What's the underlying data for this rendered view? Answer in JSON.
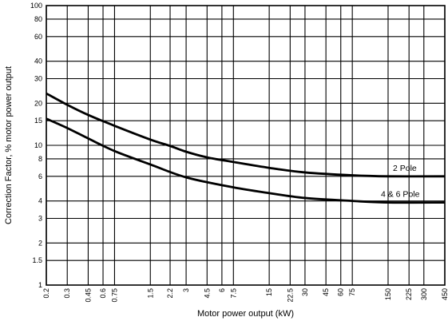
{
  "chart_data": {
    "type": "line",
    "title": "",
    "xlabel": "Motor power output (kW)",
    "ylabel": "Correction Factor, % motor power output",
    "x_scale": "log",
    "y_scale": "log",
    "xlim": [
      0.2,
      450
    ],
    "ylim": [
      1,
      100
    ],
    "grid": true,
    "legend": "inline labels at right",
    "x_ticks": [
      0.2,
      0.3,
      0.45,
      0.6,
      0.75,
      1.5,
      2.2,
      3,
      4.5,
      6,
      7.5,
      15,
      22.5,
      30,
      45,
      60,
      75,
      150,
      225,
      300,
      450
    ],
    "x_tick_labels": [
      "0.2",
      "0.3",
      "0.45",
      "0.6",
      "0.75",
      "1.5",
      "2.2",
      "3",
      "4.5",
      "6",
      "7.5",
      "15",
      "22.5",
      "30",
      "45",
      "60",
      "75",
      "150",
      "225",
      "300",
      "450"
    ],
    "y_ticks": [
      1,
      1.5,
      2,
      3,
      4,
      6,
      8,
      10,
      15,
      20,
      30,
      40,
      60,
      80,
      100
    ],
    "y_tick_labels": [
      "1",
      "1.5",
      "2",
      "3",
      "4",
      "6",
      "8",
      "10",
      "15",
      "20",
      "30",
      "40",
      "60",
      "80",
      "100"
    ],
    "series": [
      {
        "name": "2 Pole",
        "x": [
          0.2,
          0.3,
          0.45,
          0.75,
          1.5,
          2.2,
          3,
          4.5,
          7.5,
          15,
          30,
          75,
          150,
          450
        ],
        "values": [
          23.5,
          19.5,
          16.5,
          13.8,
          11.0,
          9.9,
          9.0,
          8.2,
          7.6,
          6.9,
          6.4,
          6.1,
          6.0,
          6.0
        ]
      },
      {
        "name": "4 & 6 Pole",
        "x": [
          0.2,
          0.3,
          0.45,
          0.75,
          1.5,
          3,
          7.5,
          15,
          30,
          75,
          150,
          450
        ],
        "values": [
          15.5,
          13.3,
          11.2,
          9.1,
          7.3,
          5.9,
          5.0,
          4.55,
          4.2,
          4.0,
          3.9,
          3.9
        ]
      }
    ]
  }
}
